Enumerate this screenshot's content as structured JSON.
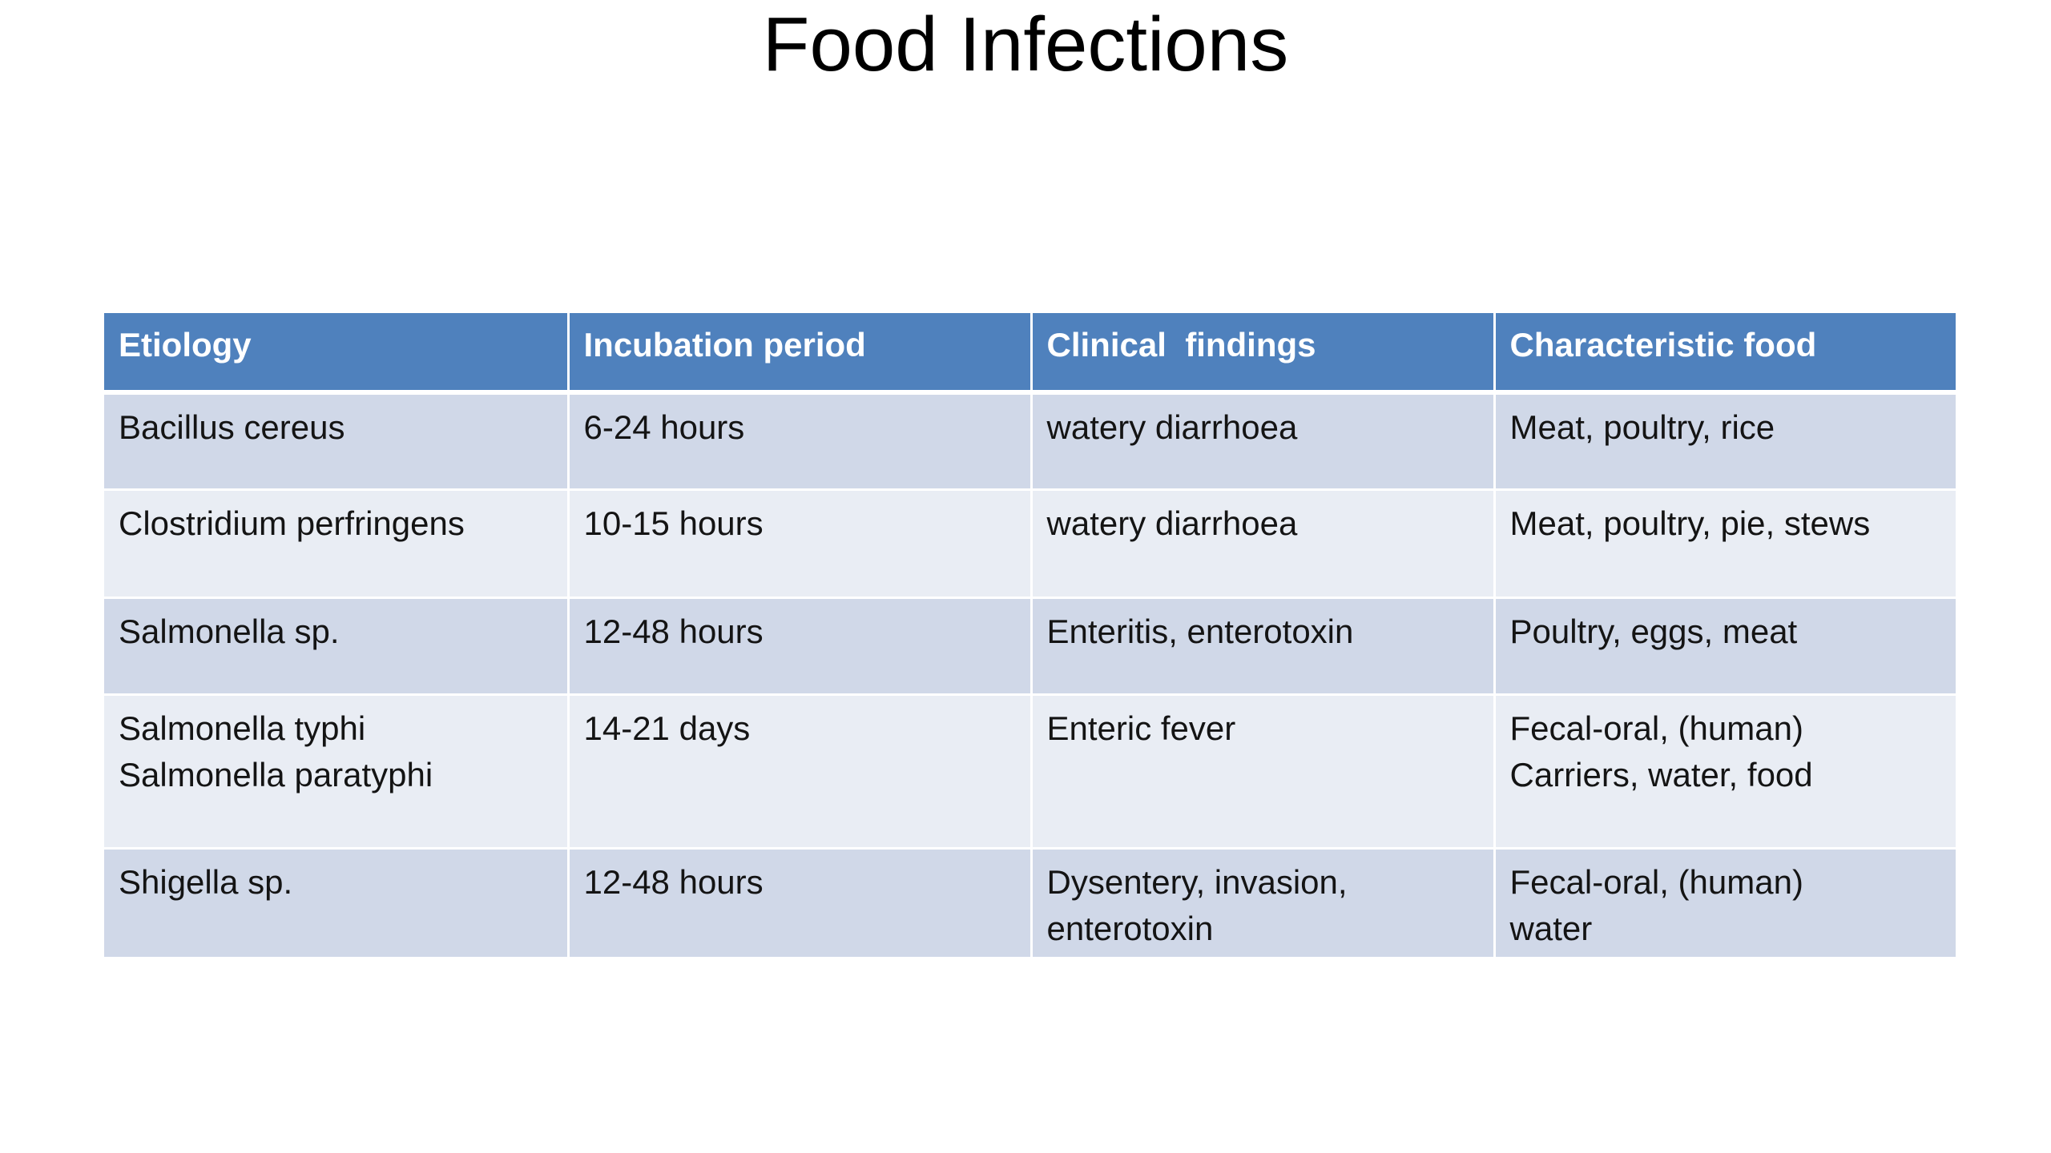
{
  "title": "Food Infections",
  "table": {
    "headers": [
      "Etiology",
      "Incubation period",
      "Clinical  findings",
      "Characteristic food"
    ],
    "rows": [
      [
        "Bacillus cereus",
        "6-24 hours",
        " watery diarrhoea",
        "Meat, poultry, rice"
      ],
      [
        "Clostridium perfringens",
        "10-15  hours",
        " watery diarrhoea",
        "Meat, poultry, pie, stews"
      ],
      [
        "Salmonella sp.",
        "12-48 hours",
        "Enteritis, enterotoxin",
        "Poultry, eggs, meat"
      ],
      [
        "Salmonella typhi\nSalmonella paratyphi",
        "14-21 days",
        "Enteric fever",
        "Fecal-oral, (human)\nCarriers, water, food"
      ],
      [
        "Shigella sp.",
        "12-48 hours",
        "Dysentery, invasion,\nenterotoxin",
        "Fecal-oral, (human)\nwater"
      ]
    ]
  },
  "colors": {
    "header_background": "#4f81bd",
    "header_text": "#ffffff",
    "row_band_dark": "#d0d8e8",
    "row_band_light": "#e9edf4"
  }
}
